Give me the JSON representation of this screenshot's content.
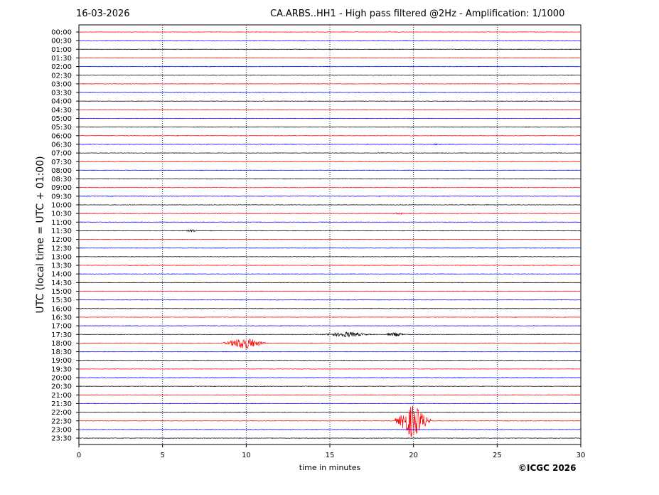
{
  "header": {
    "date": "16-03-2026",
    "title": "CA.ARBS..HH1 - High pass filtered @2Hz - Amplification: 1/1000"
  },
  "footer": {
    "copyright": "©ICGC 2026"
  },
  "chart_data": {
    "type": "line",
    "title": "CA.ARBS..HH1 - High pass filtered @2Hz - Amplification: 1/1000",
    "xlabel": "time in minutes",
    "ylabel": "UTC (local time = UTC + 01:00)",
    "xlim": [
      0,
      30
    ],
    "xticks": [
      "0",
      "5",
      "10",
      "15",
      "20",
      "25",
      "30"
    ],
    "grid": "vertical dotted lines at x ticks",
    "row_colors": [
      "#ff0000",
      "#0000ff",
      "#000000"
    ],
    "rows": [
      "00:00",
      "00:30",
      "01:00",
      "01:30",
      "02:00",
      "02:30",
      "03:00",
      "03:30",
      "04:00",
      "04:30",
      "05:00",
      "05:30",
      "06:00",
      "06:30",
      "07:00",
      "07:30",
      "08:00",
      "08:30",
      "09:00",
      "09:30",
      "10:00",
      "10:30",
      "11:00",
      "11:30",
      "12:00",
      "12:30",
      "13:00",
      "13:30",
      "14:00",
      "14:30",
      "15:00",
      "15:30",
      "16:00",
      "16:30",
      "17:00",
      "17:30",
      "18:00",
      "18:30",
      "19:00",
      "19:30",
      "20:00",
      "20:30",
      "21:00",
      "21:30",
      "22:00",
      "22:30",
      "23:00",
      "23:30"
    ],
    "events": [
      {
        "row": "06:30",
        "start_min": 21.0,
        "end_min": 21.8,
        "amplitude": 1
      },
      {
        "row": "10:30",
        "start_min": 18.6,
        "end_min": 19.6,
        "amplitude": 1.5
      },
      {
        "row": "11:30",
        "start_min": 6.3,
        "end_min": 7.2,
        "amplitude": 2
      },
      {
        "row": "17:30",
        "start_min": 14.5,
        "end_min": 17.5,
        "amplitude": 4
      },
      {
        "row": "17:30",
        "start_min": 18.2,
        "end_min": 19.6,
        "amplitude": 3
      },
      {
        "row": "18:00",
        "start_min": 8.6,
        "end_min": 11.2,
        "amplitude": 9
      },
      {
        "row": "22:30",
        "start_min": 18.9,
        "end_min": 21.0,
        "amplitude": 25
      }
    ]
  }
}
